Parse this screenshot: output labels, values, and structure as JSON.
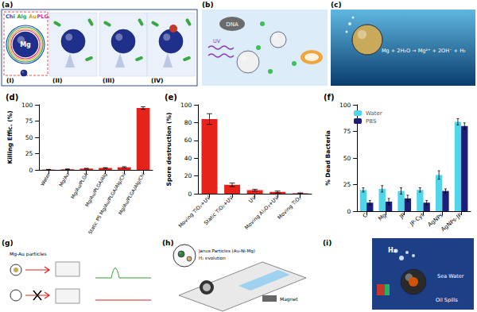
{
  "panels": {
    "a": {
      "label": "(a)",
      "shells": [
        "Chi",
        "Alg",
        "Au",
        "PLGA"
      ],
      "core": "Mg",
      "steps": [
        "(I)",
        "(II)",
        "(III)",
        "(IV)"
      ]
    },
    "b": {
      "label": "(b)",
      "texts": [
        "DNA",
        "UV"
      ]
    },
    "c": {
      "label": "(c)",
      "equation": "Mg + 2H₂O → Mg²⁺ + 2OH⁻ + H₂"
    },
    "g": {
      "label": "(g)",
      "texts": [
        "Mg-Au particles"
      ]
    },
    "h": {
      "label": "(h)",
      "texts": [
        "Janus Particles (Au-Ni-Mg)",
        "H₂ evolution",
        "Magnet"
      ]
    },
    "i": {
      "label": "(i)",
      "texts": [
        "H₂",
        "Sea Water",
        "Oil Spills"
      ]
    }
  },
  "chart_data": [
    {
      "type": "bar",
      "title": "(d)",
      "ylabel": "Killing Effic. (%)",
      "categories": [
        "Water",
        "Mg/Au",
        "Mg/Au/PLGA",
        "Mg/Au/PLGA/Alg",
        "Static PS Mg/Au/PLGA/Alg/Chi",
        "Mg/Au/PLGA/Alg/Chi"
      ],
      "values": [
        0.5,
        1,
        2,
        3,
        4,
        95
      ],
      "errors": [
        0.3,
        0.5,
        0.5,
        0.5,
        1,
        2
      ],
      "color": "#e5231b",
      "ylim": [
        0,
        100
      ],
      "yticks": [
        0,
        25,
        50,
        75,
        100
      ],
      "grid": false
    },
    {
      "type": "bar",
      "title": "(e)",
      "ylabel": "Spore destruction (%)",
      "categories": [
        "Moving TiO₂+UV",
        "Static TiO₂+UV",
        "UV",
        "Moving Al₂O₃+UV",
        "Moving TiO₂"
      ],
      "values": [
        84,
        10,
        4,
        2,
        0.5
      ],
      "errors": [
        6,
        2,
        1,
        1,
        0.4
      ],
      "color": "#e5231b",
      "ylim": [
        0,
        100
      ],
      "yticks": [
        0,
        20,
        40,
        60,
        80,
        100
      ],
      "grid": false
    },
    {
      "type": "bar",
      "title": "(f)",
      "ylabel": "% Dead Bacteria",
      "categories": [
        "C",
        "Mg",
        "JP",
        "JP-Cyt",
        "AgNPs",
        "AgNPs-JP"
      ],
      "series": [
        {
          "name": "Water",
          "color": "#4fd6ea",
          "values": [
            20,
            21,
            19,
            20,
            34,
            84
          ],
          "errors": [
            2,
            3,
            3,
            2,
            4,
            3
          ]
        },
        {
          "name": "PBS",
          "color": "#1b1f7a",
          "values": [
            8,
            9,
            12,
            8,
            19,
            80
          ],
          "errors": [
            2,
            3,
            3,
            2,
            2,
            3
          ]
        }
      ],
      "ylim": [
        0,
        100
      ],
      "yticks": [
        0,
        25,
        50,
        75,
        100
      ],
      "grid": false,
      "legend": "upper left"
    }
  ]
}
